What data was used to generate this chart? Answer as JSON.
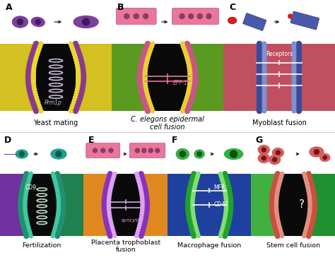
{
  "panels_top": [
    {
      "label": "A",
      "title": "Yeast mating",
      "bg_left": "#d4c020",
      "bg_right": "#d4c020",
      "bg_center": "#0a0a0a",
      "bead_outer": "#8B3A8B",
      "bead_inner": "#e8d830",
      "protein_label": "Prm1p",
      "protein_color": "#c8b8d8",
      "marker_label": "",
      "marker_lines": [],
      "show_helix": true,
      "helix_color": "#c8b8d8"
    },
    {
      "label": "B",
      "title": "C. elegons epidermal\ncell fusion",
      "bg_left": "#5a9a20",
      "bg_right": "#5a9a20",
      "bg_center": "#0a0a0a",
      "bead_outer": "#cc5588",
      "bead_inner": "#e8d030",
      "protein_label": "EFF-1",
      "protein_color": "#e87898",
      "marker_lines": [
        0.52,
        0.44
      ],
      "show_helix": false,
      "helix_color": ""
    },
    {
      "label": "C",
      "title": "Myoblast fusion",
      "bg_left": "#c05060",
      "bg_right": "#c05060",
      "bg_center": "#c05060",
      "bead_outer": "#3a4a9a",
      "bead_inner": "#8090d0",
      "protein_label": "Receptors",
      "protein_color": "white",
      "marker_lines": [
        0.72,
        0.55,
        0.38
      ],
      "show_helix": false,
      "helix_color": ""
    }
  ],
  "panels_bottom": [
    {
      "label": "D",
      "title": "Fertilization",
      "bg_left": "#7030a0",
      "bg_right": "#208050",
      "bg_center": "#0a0a0a",
      "bead_outer": "#209070",
      "bead_inner": "#40c8a0",
      "protein_label": "CD9",
      "protein_color": "white",
      "marker_lines": [],
      "show_helix": true,
      "helix_color": "#c0d8c0"
    },
    {
      "label": "E",
      "title": "Placenta trophoblast\nfusion",
      "bg_left": "#e08820",
      "bg_right": "#e08820",
      "bg_center": "#0a0a0a",
      "bead_outer": "#8833bb",
      "bead_inner": "#e0a0f0",
      "protein_label": "syncytin",
      "protein_color": "#d0a8e0",
      "marker_lines": [
        0.55,
        0.45
      ],
      "show_helix": false,
      "helix_color": ""
    },
    {
      "label": "F",
      "title": "Macrophage fusion",
      "bg_left": "#2040a0",
      "bg_right": "#2040a0",
      "bg_center": "#2040a0",
      "bead_outer": "#20a030",
      "bead_inner": "#80e070",
      "protein_label": "MFR",
      "protein_color": "white",
      "marker_lines": [
        0.73,
        0.5
      ],
      "show_helix": false,
      "helix_color": ""
    },
    {
      "label": "G",
      "title": "Stem cell fusion",
      "bg_left": "#40b040",
      "bg_right": "#209030",
      "bg_center": "#0a0a0a",
      "bead_outer": "#c85040",
      "bead_inner": "#e09080",
      "protein_label": "?",
      "protein_color": "white",
      "marker_lines": [],
      "show_helix": false,
      "helix_color": ""
    }
  ]
}
